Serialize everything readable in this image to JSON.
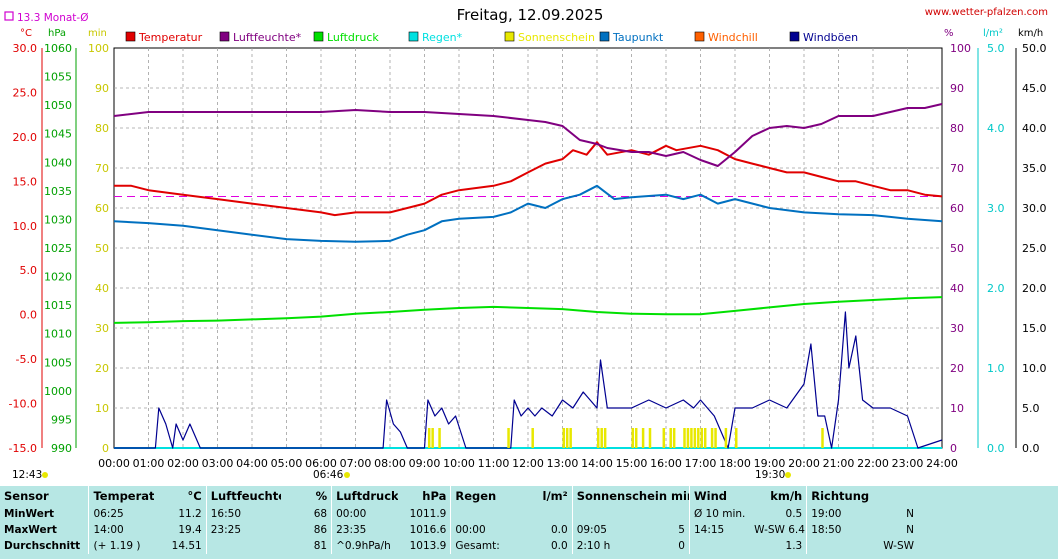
{
  "title": "Freitag, 12.09.2025",
  "site": "www.wetter-pfalzen.com",
  "month_avg": "13.3 Monat-Ø",
  "sunrise": "12:43",
  "sunrise_mark": "06:46",
  "sunset": "19:30",
  "axes": {
    "temp_unit": "°C",
    "hpa_unit": "hPa",
    "min_unit": "min",
    "pct_unit": "%",
    "rain_unit": "l/m²",
    "wind_unit": "km/h",
    "temp_ticks": [
      "30.0",
      "25.0",
      "20.0",
      "15.0",
      "10.0",
      "5.0",
      "0.0",
      "-5.0",
      "-10.0",
      "-15.0"
    ],
    "hpa_ticks": [
      "1060",
      "1055",
      "1050",
      "1045",
      "1040",
      "1035",
      "1030",
      "1025",
      "1020",
      "1015",
      "1010",
      "1005",
      "1000",
      "995",
      "990"
    ],
    "min_ticks": [
      "100",
      "90",
      "80",
      "70",
      "60",
      "50",
      "40",
      "30",
      "20",
      "10",
      "0"
    ],
    "pct_ticks": [
      "100",
      "90",
      "80",
      "70",
      "60",
      "50",
      "40",
      "30",
      "20",
      "10",
      "0"
    ],
    "rain_ticks": [
      "5.0",
      "4.0",
      "3.0",
      "2.0",
      "1.0",
      "0.0"
    ],
    "wind_ticks": [
      "50.0",
      "45.0",
      "40.0",
      "35.0",
      "30.0",
      "25.0",
      "20.0",
      "15.0",
      "10.0",
      "5.0",
      "0.0"
    ],
    "x_ticks": [
      "00:00",
      "01:00",
      "02:00",
      "03:00",
      "04:00",
      "05:00",
      "06:00",
      "07:00",
      "08:00",
      "09:00",
      "10:00",
      "11:00",
      "12:00",
      "13:00",
      "14:00",
      "15:00",
      "16:00",
      "17:00",
      "18:00",
      "19:00",
      "20:00",
      "21:00",
      "22:00",
      "23:00",
      "24:00"
    ]
  },
  "legend": [
    {
      "label": "Temperatur",
      "color": "#e00000"
    },
    {
      "label": "Luftfeuchte*",
      "color": "#800080"
    },
    {
      "label": "Luftdruck",
      "color": "#00e000"
    },
    {
      "label": "Regen*",
      "color": "#00e0e0"
    },
    {
      "label": "Sonnenschein",
      "color": "#e8e800"
    },
    {
      "label": "Taupunkt",
      "color": "#0070c0"
    },
    {
      "label": "Windchill",
      "color": "#ff6000"
    },
    {
      "label": "Windböen",
      "color": "#000090"
    }
  ],
  "chart_data": {
    "type": "line",
    "x_unit": "hour",
    "x_range": [
      0,
      24
    ],
    "month_avg_temp": 13.3,
    "series": [
      {
        "name": "Temperatur",
        "axis": "°C",
        "values": [
          [
            0,
            14.5
          ],
          [
            0.5,
            14.5
          ],
          [
            1,
            14.0
          ],
          [
            2,
            13.5
          ],
          [
            3,
            13.0
          ],
          [
            4,
            12.5
          ],
          [
            5,
            12.0
          ],
          [
            6,
            11.5
          ],
          [
            6.4,
            11.2
          ],
          [
            7,
            11.5
          ],
          [
            8,
            11.5
          ],
          [
            8.5,
            12.0
          ],
          [
            9,
            12.5
          ],
          [
            9.5,
            13.5
          ],
          [
            10,
            14.0
          ],
          [
            11,
            14.5
          ],
          [
            11.5,
            15.0
          ],
          [
            12,
            16.0
          ],
          [
            12.5,
            17.0
          ],
          [
            13,
            17.5
          ],
          [
            13.3,
            18.5
          ],
          [
            13.7,
            18.0
          ],
          [
            14,
            19.4
          ],
          [
            14.3,
            18.0
          ],
          [
            15,
            18.5
          ],
          [
            15.5,
            18.0
          ],
          [
            16,
            19.0
          ],
          [
            16.3,
            18.5
          ],
          [
            17,
            19.0
          ],
          [
            17.5,
            18.5
          ],
          [
            18,
            17.5
          ],
          [
            18.5,
            17.0
          ],
          [
            19,
            16.5
          ],
          [
            19.5,
            16.0
          ],
          [
            20,
            16.0
          ],
          [
            20.5,
            15.5
          ],
          [
            21,
            15.0
          ],
          [
            21.5,
            15.0
          ],
          [
            22,
            14.5
          ],
          [
            22.5,
            14.0
          ],
          [
            23,
            14.0
          ],
          [
            23.5,
            13.5
          ],
          [
            24,
            13.3
          ]
        ]
      },
      {
        "name": "Luftfeuchte*",
        "axis": "%",
        "values": [
          [
            0,
            83
          ],
          [
            1,
            84
          ],
          [
            2,
            84
          ],
          [
            3,
            84
          ],
          [
            4,
            84
          ],
          [
            5,
            84
          ],
          [
            6,
            84
          ],
          [
            7,
            84.5
          ],
          [
            8,
            84
          ],
          [
            9,
            84
          ],
          [
            10,
            83.5
          ],
          [
            11,
            83
          ],
          [
            12,
            82
          ],
          [
            12.5,
            81.5
          ],
          [
            13,
            80.5
          ],
          [
            13.5,
            77
          ],
          [
            14,
            76
          ],
          [
            14.3,
            75
          ],
          [
            15,
            74
          ],
          [
            15.5,
            74
          ],
          [
            16,
            73
          ],
          [
            16.5,
            74
          ],
          [
            17,
            72
          ],
          [
            17.5,
            70.5
          ],
          [
            18,
            74
          ],
          [
            18.5,
            78
          ],
          [
            19,
            80
          ],
          [
            19.5,
            80.5
          ],
          [
            20,
            80
          ],
          [
            20.5,
            81
          ],
          [
            21,
            83
          ],
          [
            22,
            83
          ],
          [
            22.5,
            84
          ],
          [
            23,
            85
          ],
          [
            23.5,
            85
          ],
          [
            24,
            86
          ]
        ]
      },
      {
        "name": "Luftdruck",
        "axis": "hPa",
        "values": [
          [
            0,
            1011.9
          ],
          [
            1,
            1012.0
          ],
          [
            2,
            1012.2
          ],
          [
            3,
            1012.3
          ],
          [
            4,
            1012.5
          ],
          [
            5,
            1012.7
          ],
          [
            6,
            1013.0
          ],
          [
            7,
            1013.5
          ],
          [
            8,
            1013.8
          ],
          [
            9,
            1014.2
          ],
          [
            10,
            1014.5
          ],
          [
            11,
            1014.7
          ],
          [
            12,
            1014.5
          ],
          [
            13,
            1014.3
          ],
          [
            14,
            1013.8
          ],
          [
            15,
            1013.5
          ],
          [
            16,
            1013.4
          ],
          [
            17,
            1013.4
          ],
          [
            18,
            1014.0
          ],
          [
            19,
            1014.6
          ],
          [
            20,
            1015.2
          ],
          [
            21,
            1015.6
          ],
          [
            22,
            1015.9
          ],
          [
            23,
            1016.2
          ],
          [
            24,
            1016.4
          ]
        ]
      },
      {
        "name": "Regen*",
        "axis": "l/m²",
        "values": [
          [
            0,
            0
          ],
          [
            24,
            0
          ]
        ]
      },
      {
        "name": "Taupunkt",
        "axis": "°C",
        "values": [
          [
            0,
            10.5
          ],
          [
            1,
            10.3
          ],
          [
            2,
            10.0
          ],
          [
            3,
            9.5
          ],
          [
            4,
            9.0
          ],
          [
            5,
            8.5
          ],
          [
            6,
            8.3
          ],
          [
            7,
            8.2
          ],
          [
            8,
            8.3
          ],
          [
            8.5,
            9.0
          ],
          [
            9,
            9.5
          ],
          [
            9.5,
            10.5
          ],
          [
            10,
            10.8
          ],
          [
            11,
            11.0
          ],
          [
            11.5,
            11.5
          ],
          [
            12,
            12.5
          ],
          [
            12.5,
            12.0
          ],
          [
            13,
            13.0
          ],
          [
            13.5,
            13.5
          ],
          [
            14,
            14.5
          ],
          [
            14.5,
            13.0
          ],
          [
            15,
            13.2
          ],
          [
            16,
            13.5
          ],
          [
            16.5,
            13.0
          ],
          [
            17,
            13.5
          ],
          [
            17.5,
            12.5
          ],
          [
            18,
            13.0
          ],
          [
            19,
            12.0
          ],
          [
            20,
            11.5
          ],
          [
            21,
            11.3
          ],
          [
            22,
            11.2
          ],
          [
            23,
            10.8
          ],
          [
            24,
            10.5
          ]
        ]
      },
      {
        "name": "Windböen",
        "axis": "km/h",
        "values": [
          [
            0,
            0
          ],
          [
            1.2,
            0
          ],
          [
            1.3,
            5
          ],
          [
            1.5,
            3
          ],
          [
            1.7,
            0
          ],
          [
            1.8,
            3
          ],
          [
            2.0,
            1
          ],
          [
            2.2,
            3
          ],
          [
            2.5,
            0
          ],
          [
            7.8,
            0
          ],
          [
            7.9,
            6
          ],
          [
            8.1,
            3
          ],
          [
            8.3,
            2
          ],
          [
            8.5,
            0
          ],
          [
            9,
            0
          ],
          [
            9.1,
            6
          ],
          [
            9.3,
            4
          ],
          [
            9.5,
            5
          ],
          [
            9.7,
            3
          ],
          [
            9.9,
            4
          ],
          [
            10.2,
            0
          ],
          [
            11.5,
            0
          ],
          [
            11.6,
            6
          ],
          [
            11.8,
            4
          ],
          [
            12,
            5
          ],
          [
            12.2,
            4
          ],
          [
            12.4,
            5
          ],
          [
            12.7,
            4
          ],
          [
            13,
            6
          ],
          [
            13.3,
            5
          ],
          [
            13.6,
            7
          ],
          [
            14,
            5
          ],
          [
            14.1,
            11
          ],
          [
            14.3,
            5
          ],
          [
            14.6,
            5
          ],
          [
            15,
            5
          ],
          [
            15.5,
            6
          ],
          [
            16,
            5
          ],
          [
            16.5,
            6
          ],
          [
            16.8,
            5
          ],
          [
            17,
            6
          ],
          [
            17.4,
            4
          ],
          [
            17.8,
            0
          ],
          [
            18,
            5
          ],
          [
            18.5,
            5
          ],
          [
            19,
            6
          ],
          [
            19.5,
            5
          ],
          [
            20,
            8
          ],
          [
            20.2,
            13
          ],
          [
            20.4,
            4
          ],
          [
            20.6,
            4
          ],
          [
            20.8,
            0
          ],
          [
            21,
            6
          ],
          [
            21.2,
            17
          ],
          [
            21.3,
            10
          ],
          [
            21.5,
            14
          ],
          [
            21.7,
            6
          ],
          [
            22,
            5
          ],
          [
            22.5,
            5
          ],
          [
            23,
            4
          ],
          [
            23.3,
            0
          ],
          [
            24,
            1
          ]
        ]
      },
      {
        "name": "Sonnenschein",
        "axis": "min",
        "bars": [
          9.1,
          9.2,
          9.4,
          11.4,
          12.1,
          13.0,
          13.1,
          13.2,
          14.0,
          14.1,
          14.2,
          15.0,
          15.1,
          15.3,
          15.5,
          15.9,
          16.1,
          16.2,
          16.5,
          16.6,
          16.7,
          16.8,
          16.9,
          17.0,
          17.1,
          17.3,
          17.4,
          17.7,
          18.0,
          20.5
        ]
      }
    ]
  },
  "stats": {
    "headers": [
      "Sensor",
      "Temperatur",
      "°C",
      "Luftfeuchte",
      "%",
      "Luftdruck",
      "hPa",
      "Regen",
      "l/m²",
      "Sonnenschein min",
      "Wind",
      "km/h",
      "Richtung"
    ],
    "rows": [
      {
        "label": "MinWert",
        "c": [
          "06:25",
          "11.2",
          "16:50",
          "68",
          "00:00",
          "1011.9",
          "",
          "",
          "",
          "",
          "Ø 10 min.",
          "0.5",
          "19:00",
          "N"
        ]
      },
      {
        "label": "MaxWert",
        "c": [
          "14:00",
          "19.4",
          "23:25",
          "86",
          "23:35",
          "1016.6",
          "00:00",
          "0.0",
          "09:05",
          "5",
          "14:15",
          "W-SW  6.4",
          "18:50",
          "N"
        ]
      },
      {
        "label": "Durchschnitt",
        "c": [
          "(+ 1.19 )",
          "14.51",
          "",
          "81",
          "^0.9hPa/h",
          "1013.9",
          "Gesamt:",
          "0.0",
          "2:10 h",
          "0",
          "",
          "1.3",
          "",
          "W-SW"
        ]
      }
    ]
  }
}
